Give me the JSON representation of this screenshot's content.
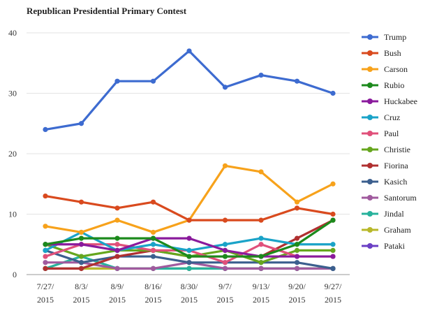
{
  "chart_data": {
    "type": "line",
    "title": "Republican Presidential Primary Contest",
    "xlabel": "",
    "ylabel": "",
    "ylim": [
      0,
      40
    ],
    "yticks": [
      0,
      10,
      20,
      30,
      40
    ],
    "grid": "horizontal",
    "legend_position": "right",
    "categories": [
      [
        "7/27/",
        "2015"
      ],
      [
        "8/3/",
        "2015"
      ],
      [
        "8/9/",
        "2015"
      ],
      [
        "8/16/",
        "2015"
      ],
      [
        "8/30/",
        "2015"
      ],
      [
        "9/7/",
        "2015"
      ],
      [
        "9/13/",
        "2015"
      ],
      [
        "9/20/",
        "2015"
      ],
      [
        "9/27/",
        "2015"
      ]
    ],
    "series": [
      {
        "name": "Trump",
        "color": "#3d6bd0",
        "values": [
          24,
          25,
          32,
          32,
          37,
          31,
          33,
          32,
          30
        ]
      },
      {
        "name": "Bush",
        "color": "#d94a1e",
        "values": [
          13,
          12,
          11,
          12,
          9,
          9,
          9,
          11,
          10
        ]
      },
      {
        "name": "Carson",
        "color": "#f7a21b",
        "values": [
          8,
          7,
          9,
          7,
          9,
          18,
          17,
          12,
          15
        ]
      },
      {
        "name": "Rubio",
        "color": "#1c8a1c",
        "values": [
          5,
          6,
          6,
          6,
          3,
          3,
          3,
          5,
          9
        ]
      },
      {
        "name": "Huckabee",
        "color": "#8a1a9c",
        "values": [
          5,
          5,
          4,
          6,
          6,
          4,
          3,
          3,
          3
        ]
      },
      {
        "name": "Cruz",
        "color": "#1aa3c8",
        "values": [
          4,
          7,
          4,
          5,
          4,
          5,
          6,
          5,
          5
        ]
      },
      {
        "name": "Paul",
        "color": "#e0507a",
        "values": [
          3,
          5,
          5,
          4,
          4,
          2,
          5,
          3,
          3
        ]
      },
      {
        "name": "Christie",
        "color": "#66a61e",
        "values": [
          5,
          3,
          4,
          4,
          3,
          4,
          2,
          4,
          4
        ]
      },
      {
        "name": "Fiorina",
        "color": "#b03030",
        "values": [
          1,
          1,
          3,
          4,
          3,
          3,
          3,
          6,
          9
        ]
      },
      {
        "name": "Kasich",
        "color": "#3b5f8e",
        "values": [
          4,
          2,
          3,
          3,
          2,
          2,
          2,
          2,
          1
        ]
      },
      {
        "name": "Santorum",
        "color": "#a05a9e",
        "values": [
          2,
          2,
          1,
          1,
          2,
          1,
          1,
          1,
          1
        ]
      },
      {
        "name": "Jindal",
        "color": "#27b29c",
        "values": [
          1,
          3,
          1,
          1,
          1,
          1,
          1,
          1,
          1
        ]
      },
      {
        "name": "Graham",
        "color": "#b8b82a",
        "values": [
          1,
          1,
          1,
          1,
          1,
          1,
          1,
          1,
          1
        ]
      },
      {
        "name": "Pataki",
        "color": "#6a3fc4",
        "values": [
          1,
          1,
          1,
          1,
          1,
          1,
          1,
          1,
          1
        ]
      }
    ]
  }
}
